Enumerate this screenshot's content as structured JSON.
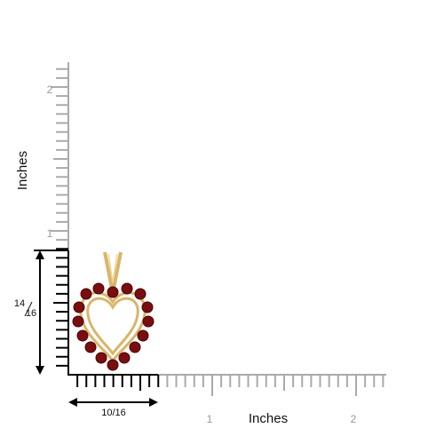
{
  "vertical_ruler": {
    "label": "Inches",
    "ticks": [
      "1",
      "2"
    ]
  },
  "horizontal_ruler": {
    "label": "Inches",
    "ticks": [
      "1",
      "2"
    ]
  },
  "height_dimension": {
    "numerator": "14",
    "denominator": "16"
  },
  "width_dimension": "10/16"
}
